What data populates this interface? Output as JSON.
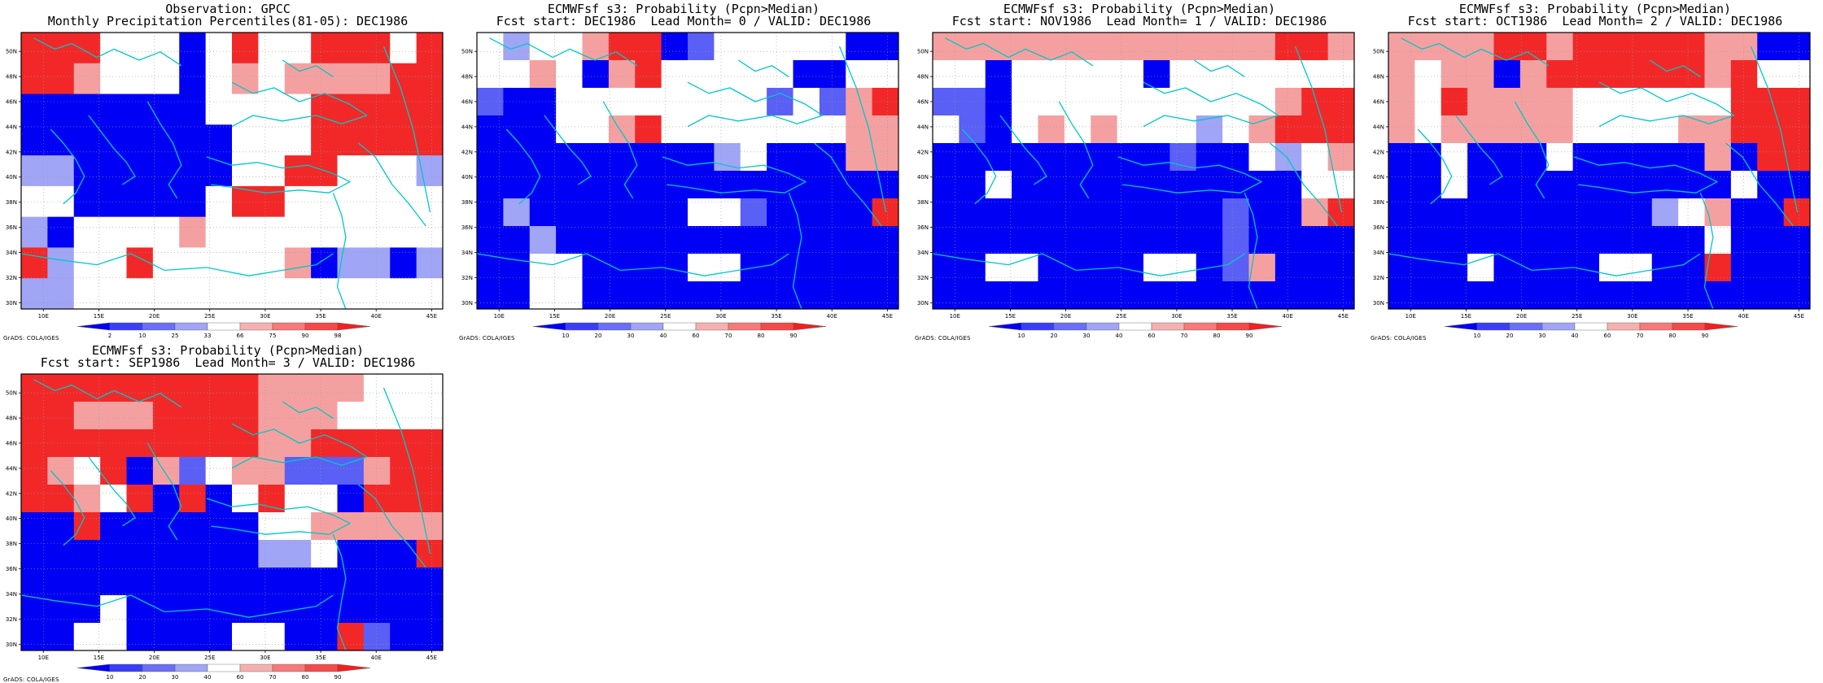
{
  "panels": [
    {
      "id": "obs",
      "title_line1": "Observation: GPCC",
      "title_line2": "Monthly Precipitation Percentiles(81-05): DEC1986",
      "colorbar_labels": [
        "2",
        "10",
        "25",
        "33",
        "66",
        "75",
        "90",
        "98"
      ],
      "grid": [
        "RRRWWWBWRWWRRRWR",
        "RRPWWWBWPWPPPPRR",
        "BBBBBBBWWWWRRRRR",
        "BBBBBBBBWWWRRRRR",
        "LLBBBBBBWWRRWWWL",
        "WWBBBBBWRRWWWWWW",
        "LBWWWWPWWWWWWWWW",
        "RLWWRWWWWWPBLLBL",
        "LLWWWWWWWWWWWWWW"
      ]
    },
    {
      "id": "lead0",
      "title_line1": "ECMWFsf s3: Probability (Pcpn>Median)",
      "title_line2": "Fcst start: DEC1986  Lead Month= 0 / VALID: DEC1986",
      "colorbar_labels": [
        "10",
        "20",
        "30",
        "40",
        "60",
        "70",
        "80",
        "90"
      ],
      "grid": [
        "WLWWPRRBMWWWWWBB",
        "WWPWBPRWWWWWBBWW",
        "MBBWWWWWWWWMWMPR",
        "BBBWWPRWWWWWWWPP",
        "BBBBBBBBBLWBBBPP",
        "BBBBBBBBBBBBBBBB",
        "BLBBBBBBWWMBBBBR",
        "BBLBBBBBBBBBBBBB",
        "BBWWBBBBWWBBBBBB",
        "BBWWBBBBBBBBBBBB"
      ]
    },
    {
      "id": "lead1",
      "title_line1": "ECMWFsf s3: Probability (Pcpn>Median)",
      "title_line2": "Fcst start: NOV1986  Lead Month= 1 / VALID: DEC1986",
      "colorbar_labels": [
        "10",
        "20",
        "30",
        "40",
        "60",
        "70",
        "80",
        "90"
      ],
      "grid": [
        "PPPPPPPPPPPPPRRP",
        "WWBWWWWWBWWWWWWW",
        "MMBWWWWWWWWWWPRR",
        "WMBWPWPWWWLWPRRR",
        "BBBBBBBBBMBBWLWP",
        "BBWBBBBBBBBBBBWW",
        "BBBBBBBBBBBMBBPR",
        "BBBBBBBBBBBMBBBB",
        "BBWWBBBBWWBMPBBB",
        "BBBBBBBBBBBBBBBB"
      ]
    },
    {
      "id": "lead2",
      "title_line1": "ECMWFsf s3: Probability (Pcpn>Median)",
      "title_line2": "Fcst start: OCT1986  Lead Month= 2 / VALID: DEC1986",
      "colorbar_labels": [
        "10",
        "20",
        "30",
        "40",
        "60",
        "70",
        "80",
        "90"
      ],
      "grid": [
        "PPPPRRPRRRRRPPBB",
        "PWPPBPRRRRRRPRWW",
        "PWRPPPPWWWWWWRRR",
        "PWPPPPPWWWWPPRRR",
        "BBWBBBWBBBBBPBRR",
        "BBWBBBBBBBBBBWBB",
        "BBBBBBBBBBLWPBBR",
        "BBBBBBBBBBBBWBBB",
        "BBBWBBBBWWBBRBBB",
        "BBBBBBBBBBBBBBBB"
      ]
    },
    {
      "id": "lead3",
      "title_line1": "ECMWFsf s3: Probability (Pcpn>Median)",
      "title_line2": "Fcst start: SEP1986  Lead Month= 3 / VALID: DEC1986",
      "colorbar_labels": [
        "10",
        "20",
        "30",
        "40",
        "60",
        "70",
        "80",
        "90"
      ],
      "grid": [
        "RRRRRRRRRPPPPWWW",
        "RRPPPRRRRPPPWWWW",
        "RRRRRRRRRPPRRRRR",
        "RPWRBPMWPPMMMPRR",
        "RRPWRBRBWRWWBRRR",
        "BBRBBBBBBWWPPPPP",
        "BBBBBBBBBLLWBBBR",
        "BBBBBBBBBBBBBBBB",
        "BBBWBBBBBBBBBBBB",
        "BBWWBBBBWWBBRMBB"
      ]
    }
  ],
  "color_key": {
    "B": "#0000f5",
    "M": "#5a5ff5",
    "L": "#a0a5f5",
    "W": "#ffffff",
    "P": "#f5a0a0",
    "S": "#f26565",
    "R": "#f22828"
  },
  "colorbar_colors": [
    "#0000f5",
    "#3a3ff5",
    "#6a6ff5",
    "#a0a5f5",
    "#ffffff",
    "#f5b0b0",
    "#f57a7a",
    "#f24a4a",
    "#f22020"
  ],
  "axis": {
    "lon_labels": [
      "10E",
      "15E",
      "20E",
      "25E",
      "30E",
      "35E",
      "40E",
      "45E"
    ],
    "lat_labels": [
      "50N",
      "48N",
      "46N",
      "44N",
      "42N",
      "40N",
      "38N",
      "36N",
      "34N",
      "32N",
      "30N"
    ]
  },
  "map_extent": {
    "lon": [
      8,
      46
    ],
    "lat": [
      29.5,
      51.5
    ]
  },
  "credit": "GrADS: COLA/IGES",
  "coast_color": "#00c8c8"
}
